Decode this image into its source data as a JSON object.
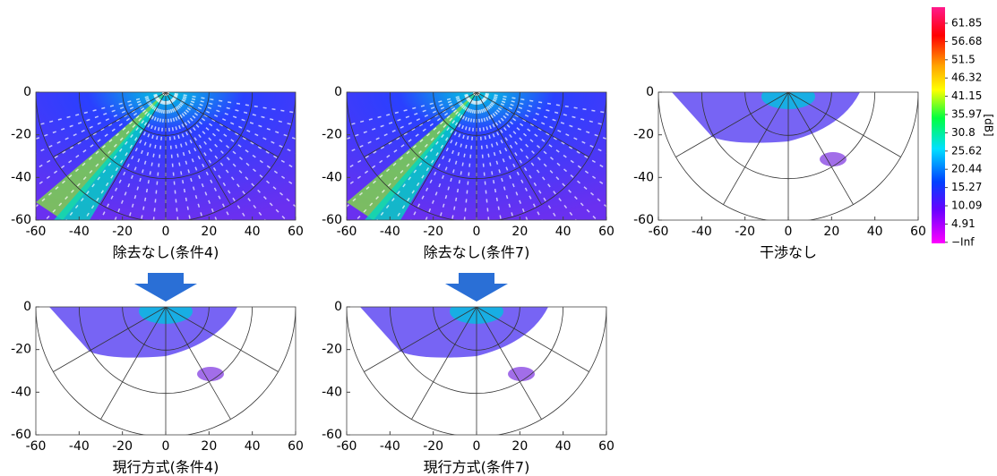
{
  "chart_data": {
    "type": "polar-image-grid",
    "panels": [
      {
        "caption": "除去なし(条件4)",
        "xlim": [
          -60,
          60
        ],
        "ylim": [
          -60,
          0
        ],
        "xticks": [
          -60,
          -40,
          -20,
          0,
          20,
          40,
          60
        ],
        "yticks": [
          0,
          -20,
          -40,
          -60
        ]
      },
      {
        "caption": "除去なし(条件7)",
        "xlim": [
          -60,
          60
        ],
        "ylim": [
          -60,
          0
        ],
        "xticks": [
          -60,
          -40,
          -20,
          0,
          20,
          40,
          60
        ],
        "yticks": [
          0,
          -20,
          -40,
          -60
        ]
      },
      {
        "caption": "干渉なし",
        "xlim": [
          -60,
          60
        ],
        "ylim": [
          -60,
          0
        ],
        "xticks": [
          -60,
          -40,
          -20,
          0,
          20,
          40,
          60
        ],
        "yticks": [
          0,
          -20,
          -40,
          -60
        ]
      },
      {
        "caption": "現行方式(条件4)",
        "xlim": [
          -60,
          60
        ],
        "ylim": [
          -60,
          0
        ],
        "xticks": [
          -60,
          -40,
          -20,
          0,
          20,
          40,
          60
        ],
        "yticks": [
          0,
          -20,
          -40,
          -60
        ]
      },
      {
        "caption": "現行方式(条件7)",
        "xlim": [
          -60,
          60
        ],
        "ylim": [
          -60,
          0
        ],
        "xticks": [
          -60,
          -40,
          -20,
          0,
          20,
          40,
          60
        ],
        "yticks": [
          0,
          -20,
          -40,
          -60
        ]
      }
    ],
    "colorbar": {
      "label": "[dB]",
      "ticks": [
        61.85,
        56.68,
        51.5,
        46.32,
        41.15,
        35.97,
        30.8,
        25.62,
        20.44,
        15.27,
        10.09,
        4.91,
        {
          "value": null,
          "label": "−Inf"
        }
      ]
    }
  }
}
